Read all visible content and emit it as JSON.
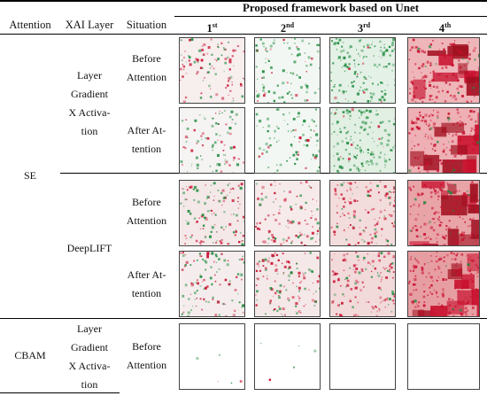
{
  "table": {
    "title": "Proposed framework based on Unet",
    "headers": {
      "attention": "Attention",
      "xai_layer": "XAI Layer",
      "situation": "Situation"
    },
    "columns": [
      {
        "base": "1",
        "suffix": "st"
      },
      {
        "base": "2",
        "suffix": "nd"
      },
      {
        "base": "3",
        "suffix": "rd"
      },
      {
        "base": "4",
        "suffix": "th"
      }
    ],
    "attention_groups": [
      {
        "name": "SE"
      },
      {
        "name": "CBAM"
      }
    ],
    "xai_layers": [
      {
        "lines": [
          "Layer",
          "Gradient",
          "X Activa-",
          "tion"
        ]
      },
      {
        "lines": [
          "DeepLIFT"
        ]
      },
      {
        "lines": [
          "Layer",
          "Gradient",
          "X Activa-",
          "tion"
        ]
      }
    ],
    "situations": [
      {
        "lines": [
          "Before",
          "Attention"
        ]
      },
      {
        "lines": [
          "After At-",
          "tention"
        ]
      },
      {
        "lines": [
          "Before",
          "Attention"
        ]
      },
      {
        "lines": [
          "After At-",
          "tention"
        ]
      },
      {
        "lines": [
          "Before",
          "Attention"
        ]
      }
    ],
    "heatmap_colors": {
      "positive": "#c8102e",
      "negative": "#1a8a3a"
    }
  }
}
